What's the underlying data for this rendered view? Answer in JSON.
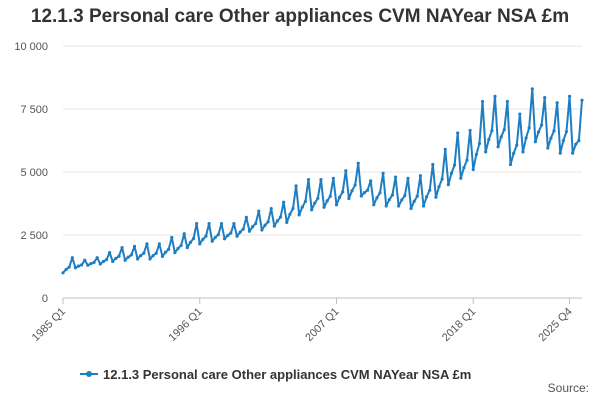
{
  "chart_data": {
    "type": "line",
    "title": "12.1.3 Personal care Other appliances CVM NAYear NSA £m",
    "xlabel": "",
    "ylabel": "",
    "ylim": [
      0,
      10000
    ],
    "y_ticks": [
      "0",
      "2 500",
      "5 000",
      "7 500",
      "10 000"
    ],
    "y_tick_values": [
      0,
      2500,
      5000,
      7500,
      10000
    ],
    "x_tick_labels": [
      "1985 Q1",
      "1996 Q1",
      "2007 Q1",
      "2018 Q1",
      "2025 Q4"
    ],
    "x_range": [
      "1985 Q1",
      "2025 Q4"
    ],
    "grid": true,
    "legend": "bottom",
    "color": "#1f7ec2",
    "series": [
      {
        "name": "12.1.3 Personal care Other appliances CVM NAYear NSA £m",
        "annual_q4_values": [
          1600,
          1500,
          1600,
          1800,
          2000,
          2050,
          2150,
          2150,
          2400,
          2550,
          2950,
          2950,
          2950,
          2950,
          3200,
          3450,
          3550,
          3800,
          4450,
          4700,
          4700,
          4750,
          5050,
          5350,
          4650,
          4950,
          4800,
          4750,
          4850,
          5300,
          5900,
          6550,
          6650,
          7800,
          8000,
          7800,
          7300,
          8300,
          7950,
          7750,
          8000
        ],
        "q1_values": [
          1000,
          1200,
          1300,
          1350,
          1450,
          1500,
          1550,
          1550,
          1650,
          1800,
          2000,
          2150,
          2250,
          2350,
          2450,
          2650,
          2700,
          2850,
          3000,
          3300,
          3500,
          3600,
          3700,
          3950,
          4050,
          3700,
          3650,
          3650,
          3550,
          3650,
          4000,
          4500,
          4750,
          5100,
          5800,
          6000,
          5300,
          5800,
          6200,
          5950,
          5750
        ],
        "last_value": 7850
      }
    ]
  },
  "legend_label": "12.1.3 Personal care Other appliances CVM NAYear NSA £m",
  "source_label": "Source:"
}
